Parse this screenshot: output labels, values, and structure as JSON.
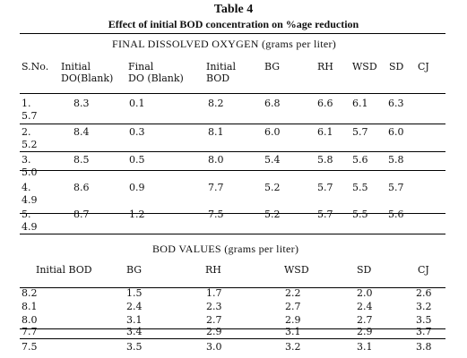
{
  "table_title": "Table 4",
  "table_subtitle": "Effect of initial BOD concentration on %age reduction",
  "section1": {
    "caption": "FINAL  DISSOLVED  OXYGEN  (grams per liter)",
    "headers": {
      "sno": "S.No.",
      "initial_do_1": "Initial",
      "initial_do_2": "DO(Blank)",
      "final_do_1": "Final",
      "final_do_2": "DO (Blank)",
      "initial_bod_1": "Initial",
      "initial_bod_2": "BOD",
      "bg": "BG",
      "rh": "RH",
      "wsd": "WSD",
      "sd": "SD",
      "cj": "CJ"
    },
    "rows": [
      {
        "sno": "1.",
        "cj": "5.7",
        "initial_do": "8.3",
        "final_do": "0.1",
        "initial_bod": "8.2",
        "bg": "6.8",
        "rh": "6.6",
        "wsd": "6.1",
        "sd": "6.3"
      },
      {
        "sno": "2.",
        "cj": "5.2",
        "initial_do": "8.4",
        "final_do": "0.3",
        "initial_bod": "8.1",
        "bg": "6.0",
        "rh": "6.1",
        "wsd": "5.7",
        "sd": "6.0"
      },
      {
        "sno": "3.",
        "cj": "5.0",
        "initial_do": "8.5",
        "final_do": "0.5",
        "initial_bod": "8.0",
        "bg": "5.4",
        "rh": "5.8",
        "wsd": "5.6",
        "sd": "5.8"
      },
      {
        "sno": "4.",
        "cj": "4.9",
        "initial_do": "8.6",
        "final_do": "0.9",
        "initial_bod": "7.7",
        "bg": "5.2",
        "rh": "5.7",
        "wsd": "5.5",
        "sd": "5.7"
      },
      {
        "sno": "5.",
        "cj": "4.9",
        "initial_do": "8.7",
        "final_do": "1.2",
        "initial_bod": "7.5",
        "bg": "5.2",
        "rh": "5.7",
        "wsd": "5.5",
        "sd": "5.6"
      }
    ]
  },
  "section2": {
    "caption": "BOD    VALUES (grams per liter)",
    "headers": {
      "initial_bod": "Initial BOD",
      "bg": "BG",
      "rh": "RH",
      "wsd": "WSD",
      "sd": "SD",
      "cj": "CJ"
    },
    "rows": [
      {
        "initial_bod": "8.2",
        "bg": "1.5",
        "rh": "1.7",
        "wsd": "2.2",
        "sd": "2.0",
        "cj": "2.6"
      },
      {
        "initial_bod": "8.1",
        "bg": "2.4",
        "rh": "2.3",
        "wsd": "2.7",
        "sd": "2.4",
        "cj": "3.2"
      },
      {
        "initial_bod": "8.0",
        "bg": "3.1",
        "rh": "2.7",
        "wsd": "2.9",
        "sd": "2.7",
        "cj": "3.5"
      },
      {
        "initial_bod": "7.7",
        "bg": "3.4",
        "rh": "2.9",
        "wsd": "3.1",
        "sd": "2.9",
        "cj": "3.7"
      },
      {
        "initial_bod": "7.5",
        "bg": "3.5",
        "rh": "3.0",
        "wsd": "3.2",
        "sd": "3.1",
        "cj": "3.8"
      }
    ]
  }
}
